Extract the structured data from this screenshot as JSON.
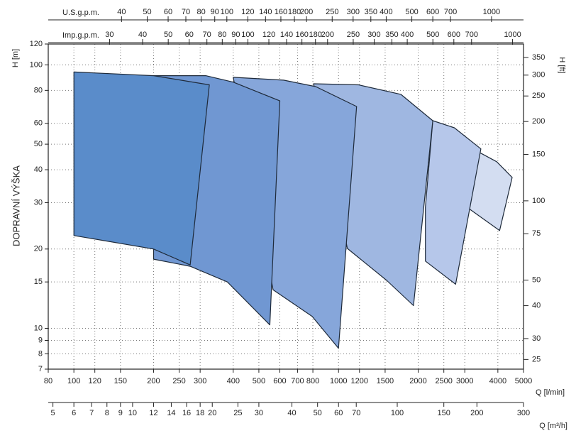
{
  "chart_data": {
    "type": "area",
    "y_label": "DOPRAVNÍ VÝŠKA",
    "y_unit_label": "H [m]",
    "x_label": "Q [l/min]",
    "log_scale": true,
    "grid": true,
    "xlim": [
      80,
      5000
    ],
    "xticks": [
      80,
      100,
      120,
      150,
      200,
      250,
      300,
      400,
      500,
      600,
      700,
      800,
      1000,
      1200,
      1500,
      2000,
      2500,
      3000,
      4000,
      5000
    ],
    "ylim": [
      7,
      120
    ],
    "yticks": [
      7,
      8,
      9,
      10,
      15,
      20,
      30,
      40,
      50,
      60,
      80,
      100,
      120
    ],
    "y2_label": "H [ft]",
    "y2lim": [
      22.97,
      393.7
    ],
    "y2ticks": [
      25,
      30,
      40,
      50,
      75,
      100,
      150,
      200,
      250,
      300,
      350
    ],
    "top_axes": [
      {
        "label": "U.S.g.p.m.",
        "lim": [
          21.14,
          1321
        ],
        "ticks": [
          40,
          50,
          60,
          70,
          80,
          90,
          100,
          120,
          140,
          160,
          180,
          200,
          250,
          300,
          350,
          400,
          500,
          600,
          700,
          1000
        ]
      },
      {
        "label": "Imp.g.p.m.",
        "lim": [
          17.6,
          1100
        ],
        "ticks": [
          30,
          40,
          50,
          60,
          70,
          80,
          90,
          100,
          120,
          140,
          160,
          180,
          200,
          250,
          300,
          350,
          400,
          500,
          600,
          700,
          1000
        ]
      }
    ],
    "bottom_axis": {
      "label": "Q [m³/h]",
      "lim": [
        4.8,
        300
      ],
      "ticks": [
        5,
        6,
        7,
        8,
        9,
        10,
        12,
        14,
        16,
        18,
        20,
        25,
        30,
        40,
        50,
        60,
        70,
        100,
        150,
        200,
        300
      ]
    },
    "series": [
      {
        "color": "#d3ddf1",
        "x": [
          3410,
          3960,
          4530,
          4060,
          3090
        ],
        "values": [
          46.5,
          42.9,
          37.4,
          23.5,
          28.6
        ]
      },
      {
        "color": "#b6c7ea",
        "x": [
          2270,
          2740,
          3450,
          2770,
          2130,
          2130
        ],
        "values": [
          61.4,
          57.7,
          48.0,
          14.7,
          18.0,
          28.8
        ]
      },
      {
        "color": "#9fb7e1",
        "x": [
          805,
          1190,
          1720,
          2270,
          1920,
          1520,
          1080
        ],
        "values": [
          84.8,
          84,
          77.3,
          61.4,
          12.2,
          15.2,
          20.1
        ]
      },
      {
        "color": "#86a6da",
        "x": [
          400,
          620,
          820,
          1170,
          1000,
          795,
          566
        ],
        "values": [
          89.7,
          87.5,
          82.7,
          69.5,
          8.4,
          11.1,
          14.0
        ]
      },
      {
        "color": "#7097d2",
        "x": [
          200,
          315,
          400,
          600,
          550,
          380,
          275,
          200
        ],
        "values": [
          91,
          91,
          86,
          73,
          10.3,
          15,
          17.2,
          18.3
        ]
      },
      {
        "color": "#5a8cca",
        "x": [
          100,
          200,
          325,
          275,
          200,
          100
        ],
        "values": [
          94,
          91,
          84,
          17.4,
          20,
          22.5
        ]
      }
    ]
  }
}
